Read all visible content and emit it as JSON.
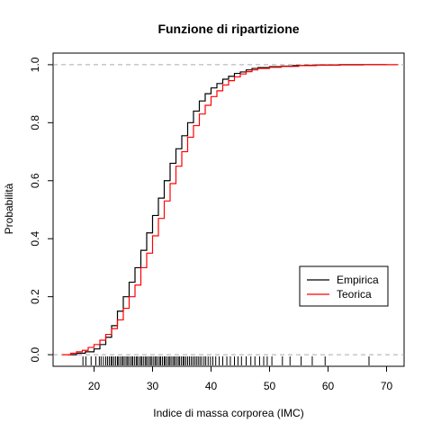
{
  "chart_data": {
    "type": "line",
    "title": "Funzione di ripartizione",
    "xlabel": "Indice di massa corporea (IMC)",
    "ylabel": "Probabilità",
    "xlim": [
      13,
      73
    ],
    "ylim": [
      -0.04,
      1.04
    ],
    "xticks": [
      20,
      30,
      40,
      50,
      60,
      70
    ],
    "yticks": [
      0.0,
      0.2,
      0.4,
      0.6,
      0.8,
      1.0
    ],
    "grid": false,
    "reference_lines_y": [
      0,
      1
    ],
    "legend_position": "bottom-right",
    "series": [
      {
        "name": "Empirica",
        "color": "#000000",
        "step": true,
        "x": [
          15.5,
          17,
          18.5,
          20,
          21,
          22,
          23,
          24,
          25,
          26,
          27,
          28,
          29,
          30,
          31,
          32,
          33,
          34,
          35,
          36,
          37,
          38,
          39,
          40,
          41,
          42,
          43,
          44,
          45,
          46,
          47,
          48,
          50,
          52,
          54,
          56,
          58,
          60,
          62,
          64,
          67,
          70
        ],
        "y": [
          0.0,
          0.005,
          0.01,
          0.02,
          0.035,
          0.06,
          0.1,
          0.15,
          0.2,
          0.25,
          0.3,
          0.36,
          0.42,
          0.48,
          0.54,
          0.6,
          0.66,
          0.71,
          0.755,
          0.8,
          0.84,
          0.875,
          0.9,
          0.92,
          0.935,
          0.95,
          0.96,
          0.97,
          0.975,
          0.982,
          0.987,
          0.99,
          0.993,
          0.995,
          0.997,
          0.998,
          0.999,
          0.999,
          1.0,
          1.0,
          1.0,
          1.0
        ]
      },
      {
        "name": "Teorica",
        "color": "#ff0000",
        "step": true,
        "x": [
          14.5,
          16,
          17,
          18,
          19,
          20,
          21,
          22,
          23,
          24,
          25,
          26,
          27,
          28,
          29,
          30,
          31,
          32,
          33,
          34,
          35,
          36,
          37,
          38,
          39,
          40,
          41,
          42,
          43,
          44,
          45,
          46,
          47,
          48,
          50,
          52,
          55,
          58,
          62,
          66,
          70,
          72
        ],
        "y": [
          0.0,
          0.005,
          0.01,
          0.015,
          0.025,
          0.035,
          0.05,
          0.07,
          0.09,
          0.12,
          0.16,
          0.2,
          0.24,
          0.3,
          0.35,
          0.41,
          0.47,
          0.53,
          0.59,
          0.65,
          0.7,
          0.75,
          0.79,
          0.83,
          0.86,
          0.89,
          0.91,
          0.93,
          0.945,
          0.958,
          0.968,
          0.976,
          0.982,
          0.987,
          0.991,
          0.994,
          0.997,
          0.998,
          0.999,
          1.0,
          1.0,
          1.0
        ]
      }
    ],
    "rug_x": [
      18.1,
      18.6,
      19.5,
      20.3,
      20.9,
      21.2,
      21.6,
      22.0,
      22.3,
      22.6,
      22.9,
      23.1,
      23.4,
      23.7,
      24.0,
      24.2,
      24.5,
      24.8,
      25.0,
      25.3,
      25.6,
      25.8,
      26.1,
      26.4,
      26.6,
      26.9,
      27.2,
      27.4,
      27.7,
      28.0,
      28.2,
      28.5,
      28.8,
      29.0,
      29.3,
      29.6,
      29.8,
      30.1,
      30.4,
      30.6,
      30.9,
      31.2,
      31.4,
      31.7,
      32.0,
      32.2,
      32.5,
      32.8,
      33.0,
      33.3,
      33.6,
      33.8,
      34.1,
      34.4,
      34.6,
      34.9,
      35.2,
      35.4,
      35.7,
      36.0,
      36.3,
      36.6,
      36.9,
      37.2,
      37.5,
      37.8,
      38.1,
      38.4,
      38.8,
      39.1,
      39.5,
      39.9,
      40.3,
      40.8,
      41.4,
      42.0,
      42.7,
      43.3,
      44.0,
      44.6,
      45.2,
      46.0,
      46.8,
      47.5,
      48.3,
      49.0,
      49.6,
      50.4,
      52.2,
      53.5,
      55.4,
      57.3,
      59.5,
      67.0
    ],
    "legend": [
      "Empirica",
      "Teorica"
    ]
  }
}
